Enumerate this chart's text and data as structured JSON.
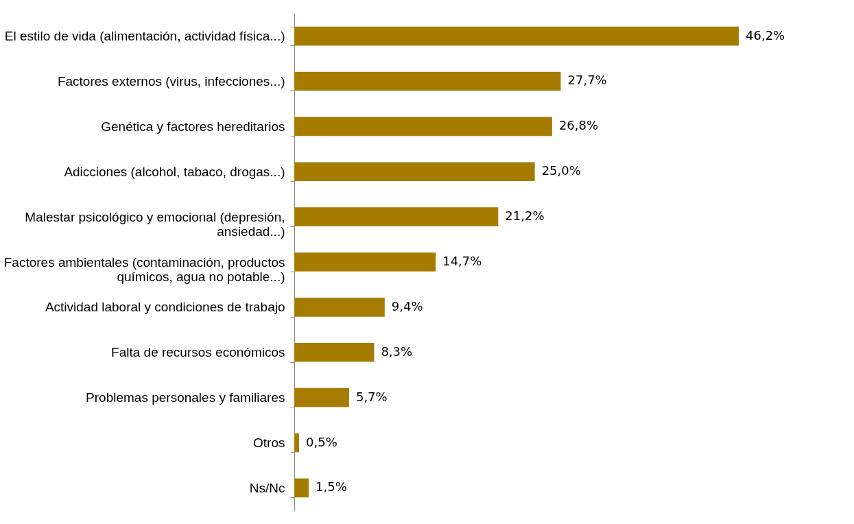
{
  "chart_data": {
    "type": "bar",
    "orientation": "horizontal",
    "categories": [
      "El estilo de vida (alimentación, actividad física...)",
      "Factores externos (virus, infecciones...)",
      "Genética y factores hereditarios",
      "Adicciones (alcohol, tabaco, drogas...)",
      "Malestar psicológico y emocional (depresión,\nansiedad...)",
      "Factores ambientales (contaminación, productos\nquímicos, agua no potable...)",
      "Actividad laboral y condiciones de trabajo",
      "Falta de recursos económicos",
      "Problemas personales y familiares",
      "Otros",
      "Ns/Nc"
    ],
    "values": [
      46.2,
      27.7,
      26.8,
      25.0,
      21.2,
      14.7,
      9.4,
      8.3,
      5.7,
      0.5,
      1.5
    ],
    "value_labels": [
      "46,2%",
      "27,7%",
      "26,8%",
      "25,0%",
      "21,2%",
      "14,7%",
      "9,4%",
      "8,3%",
      "5,7%",
      "0,5%",
      "1,5%"
    ],
    "color": "#a67c00",
    "grid": false
  }
}
